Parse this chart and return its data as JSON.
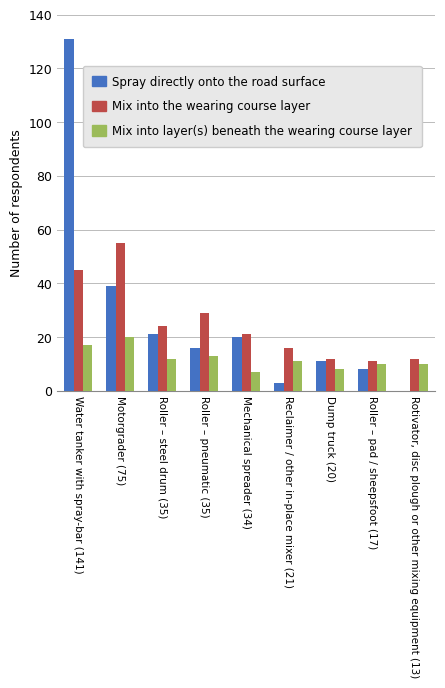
{
  "categories": [
    "Water tanker with spray-bar (141)",
    "Motorgrader (75)",
    "Roller – steel drum (35)",
    "Roller – pneumatic (35)",
    "Mechanical spreader (34)",
    "Reclaimer / other in-place mixer (21)",
    "Dump truck (20)",
    "Roller – pad / sheepsfoot (17)",
    "Rotivator, disc plough or other mixing equipment (13)"
  ],
  "series": [
    {
      "label": "Spray directly onto the road surface",
      "color": "#4472C4",
      "values": [
        131,
        39,
        21,
        16,
        20,
        3,
        11,
        8,
        0
      ]
    },
    {
      "label": "Mix into the wearing course layer",
      "color": "#BE4B48",
      "values": [
        45,
        55,
        24,
        29,
        21,
        16,
        12,
        11,
        12
      ]
    },
    {
      "label": "Mix into layer(s) beneath the wearing course layer",
      "color": "#9BBB59",
      "values": [
        17,
        20,
        12,
        13,
        7,
        11,
        8,
        10,
        10
      ]
    }
  ],
  "ylabel": "Number of respondents",
  "ylim": [
    0,
    140
  ],
  "yticks": [
    0,
    20,
    40,
    60,
    80,
    100,
    120,
    140
  ],
  "figure_bg_color": "#FFFFFF",
  "plot_bg_color": "#FFFFFF",
  "legend_bg_color": "#E8E8E8",
  "bar_width": 0.22,
  "figsize": [
    4.5,
    6.72
  ],
  "dpi": 100
}
